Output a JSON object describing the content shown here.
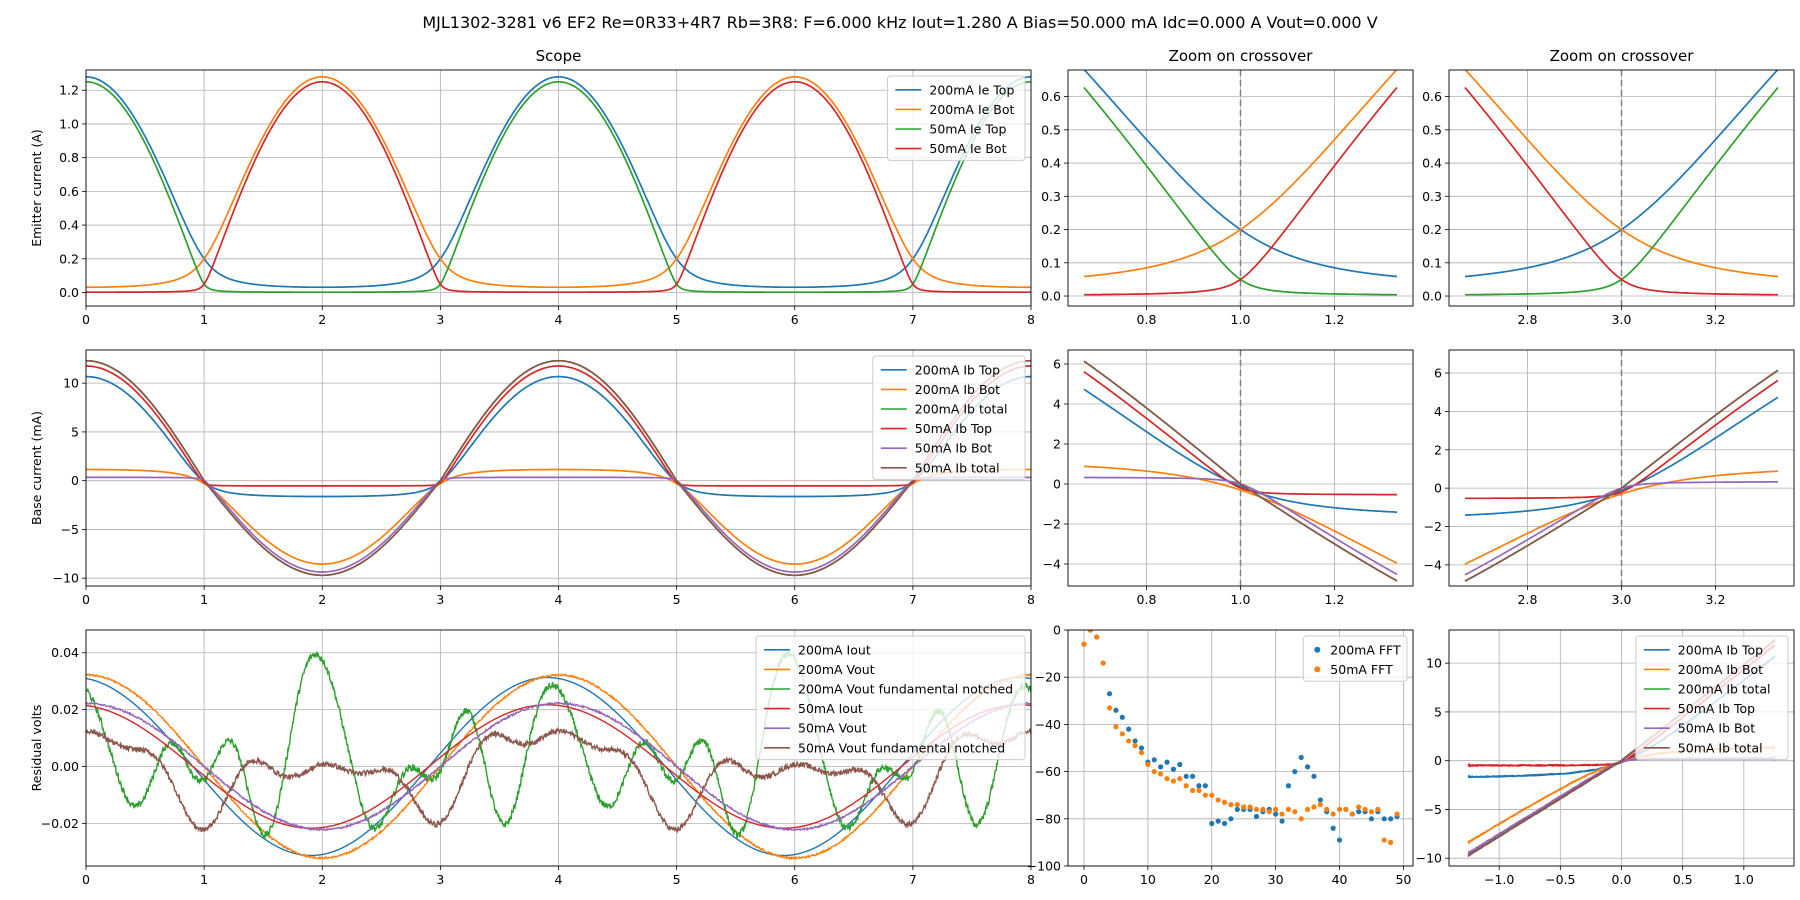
{
  "figure": {
    "suptitle": "MJL1302-3281 v6 EF2 Re=0R33+4R7 Rb=3R8: F=6.000 kHz Iout=1.280 A Bias=50.000 mA Idc=0.000 A Vout=0.000 V"
  },
  "colors": {
    "c0": "#1f77b4",
    "c1": "#ff7f0e",
    "c2": "#2ca02c",
    "c3": "#d62728",
    "c4": "#9467bd",
    "c5": "#8c564b",
    "grid": "#b0b0b0",
    "crossover_line": "#808080"
  },
  "chart_data": [
    {
      "id": "scope_ie",
      "type": "line",
      "title": "Scope",
      "xlabel": "",
      "ylabel": "Emitter current (A)",
      "xlim": [
        0,
        8
      ],
      "ylim": [
        -0.08,
        1.32
      ],
      "xticks": [
        0,
        1,
        2,
        3,
        4,
        5,
        6,
        7,
        8
      ],
      "yticks": [
        0.0,
        0.2,
        0.4,
        0.6,
        0.8,
        1.0,
        1.2
      ],
      "ytick_labels": [
        "0.0",
        "0.2",
        "0.4",
        "0.6",
        "0.8",
        "1.0",
        "1.2"
      ],
      "grid": true,
      "legend": "upper-right",
      "series": [
        {
          "name": "200mA Ie Top",
          "color": "#1f77b4",
          "fn": "ieTop",
          "params": {
            "b": 0.2
          }
        },
        {
          "name": "200mA Ie Bot",
          "color": "#ff7f0e",
          "fn": "ieBot",
          "params": {
            "b": 0.2
          }
        },
        {
          "name": "50mA Ie Top",
          "color": "#2ca02c",
          "fn": "ieTop",
          "params": {
            "b": 0.05
          }
        },
        {
          "name": "50mA Ie Bot",
          "color": "#d62728",
          "fn": "ieBot",
          "params": {
            "b": 0.05
          }
        }
      ]
    },
    {
      "id": "zoom_ie_1",
      "type": "line",
      "title": "Zoom on crossover",
      "xlim": [
        0.633,
        1.367
      ],
      "ylim": [
        -0.03,
        0.68
      ],
      "xticks": [
        0.8,
        1.0,
        1.2
      ],
      "xtick_labels": [
        "0.8",
        "1.0",
        "1.2"
      ],
      "yticks": [
        0.0,
        0.1,
        0.2,
        0.3,
        0.4,
        0.5,
        0.6
      ],
      "ytick_labels": [
        "0.0",
        "0.1",
        "0.2",
        "0.3",
        "0.4",
        "0.5",
        "0.6"
      ],
      "grid": true,
      "vline": 1.0,
      "xrange": [
        0.667,
        1.333
      ],
      "series": [
        {
          "color": "#1f77b4",
          "fn": "ieTop",
          "params": {
            "b": 0.2
          }
        },
        {
          "color": "#ff7f0e",
          "fn": "ieBot",
          "params": {
            "b": 0.2
          }
        },
        {
          "color": "#2ca02c",
          "fn": "ieTop",
          "params": {
            "b": 0.05
          }
        },
        {
          "color": "#d62728",
          "fn": "ieBot",
          "params": {
            "b": 0.05
          }
        }
      ]
    },
    {
      "id": "zoom_ie_3",
      "type": "line",
      "title": "Zoom on crossover",
      "xlim": [
        2.633,
        3.367
      ],
      "ylim": [
        -0.03,
        0.68
      ],
      "xticks": [
        2.8,
        3.0,
        3.2
      ],
      "xtick_labels": [
        "2.8",
        "3.0",
        "3.2"
      ],
      "yticks": [
        0.0,
        0.1,
        0.2,
        0.3,
        0.4,
        0.5,
        0.6
      ],
      "ytick_labels": [
        "0.0",
        "0.1",
        "0.2",
        "0.3",
        "0.4",
        "0.5",
        "0.6"
      ],
      "grid": true,
      "vline": 3.0,
      "xrange": [
        2.667,
        3.333
      ],
      "series": [
        {
          "color": "#1f77b4",
          "fn": "ieTop",
          "params": {
            "b": 0.2
          }
        },
        {
          "color": "#ff7f0e",
          "fn": "ieBot",
          "params": {
            "b": 0.2
          }
        },
        {
          "color": "#2ca02c",
          "fn": "ieTop",
          "params": {
            "b": 0.05
          }
        },
        {
          "color": "#d62728",
          "fn": "ieBot",
          "params": {
            "b": 0.05
          }
        }
      ]
    },
    {
      "id": "scope_ib",
      "type": "line",
      "title": "",
      "ylabel": "Base current (mA)",
      "xlim": [
        0,
        8
      ],
      "ylim": [
        -10.8,
        13.4
      ],
      "xticks": [
        0,
        1,
        2,
        3,
        4,
        5,
        6,
        7,
        8
      ],
      "yticks": [
        -10,
        -5,
        0,
        5,
        10
      ],
      "ytick_labels": [
        "−10",
        "−5",
        "0",
        "5",
        "10"
      ],
      "grid": true,
      "legend": "upper-right",
      "series": [
        {
          "name": "200mA Ib Top",
          "color": "#1f77b4",
          "fn": "ibTop",
          "params": {
            "b": 0.2
          }
        },
        {
          "name": "200mA Ib Bot",
          "color": "#ff7f0e",
          "fn": "ibBot",
          "params": {
            "b": 0.2
          }
        },
        {
          "name": "200mA Ib total",
          "color": "#2ca02c",
          "fn": "ibTot",
          "params": {
            "b": 0.2
          }
        },
        {
          "name": "50mA Ib Top",
          "color": "#d62728",
          "fn": "ibTop",
          "params": {
            "b": 0.05
          }
        },
        {
          "name": "50mA Ib Bot",
          "color": "#9467bd",
          "fn": "ibBot",
          "params": {
            "b": 0.05
          }
        },
        {
          "name": "50mA Ib total",
          "color": "#8c564b",
          "fn": "ibTot",
          "params": {
            "b": 0.05
          }
        }
      ]
    },
    {
      "id": "zoom_ib_1",
      "type": "line",
      "title": "",
      "xlim": [
        0.633,
        1.367
      ],
      "ylim": [
        -5.1,
        6.7
      ],
      "xticks": [
        0.8,
        1.0,
        1.2
      ],
      "xtick_labels": [
        "0.8",
        "1.0",
        "1.2"
      ],
      "yticks": [
        -4,
        -2,
        0,
        2,
        4,
        6
      ],
      "ytick_labels": [
        "−4",
        "−2",
        "0",
        "2",
        "4",
        "6"
      ],
      "grid": true,
      "vline": 1.0,
      "xrange": [
        0.667,
        1.333
      ],
      "series": [
        {
          "color": "#1f77b4",
          "fn": "ibTop",
          "params": {
            "b": 0.2
          }
        },
        {
          "color": "#ff7f0e",
          "fn": "ibBot",
          "params": {
            "b": 0.2
          }
        },
        {
          "color": "#2ca02c",
          "fn": "ibTot",
          "params": {
            "b": 0.2
          }
        },
        {
          "color": "#d62728",
          "fn": "ibTop",
          "params": {
            "b": 0.05
          }
        },
        {
          "color": "#9467bd",
          "fn": "ibBot",
          "params": {
            "b": 0.05
          }
        },
        {
          "color": "#8c564b",
          "fn": "ibTot",
          "params": {
            "b": 0.05
          }
        }
      ]
    },
    {
      "id": "zoom_ib_3",
      "type": "line",
      "title": "",
      "xlim": [
        2.633,
        3.367
      ],
      "ylim": [
        -5.1,
        7.2
      ],
      "xticks": [
        2.8,
        3.0,
        3.2
      ],
      "xtick_labels": [
        "2.8",
        "3.0",
        "3.2"
      ],
      "yticks": [
        -4,
        -2,
        0,
        2,
        4,
        6
      ],
      "ytick_labels": [
        "−4",
        "−2",
        "0",
        "2",
        "4",
        "6"
      ],
      "grid": true,
      "vline": 3.0,
      "xrange": [
        2.667,
        3.333
      ],
      "series": [
        {
          "color": "#1f77b4",
          "fn": "ibTop",
          "params": {
            "b": 0.2
          }
        },
        {
          "color": "#ff7f0e",
          "fn": "ibBot",
          "params": {
            "b": 0.2
          }
        },
        {
          "color": "#2ca02c",
          "fn": "ibTot",
          "params": {
            "b": 0.2
          }
        },
        {
          "color": "#d62728",
          "fn": "ibTop",
          "params": {
            "b": 0.05
          }
        },
        {
          "color": "#9467bd",
          "fn": "ibBot",
          "params": {
            "b": 0.05
          }
        },
        {
          "color": "#8c564b",
          "fn": "ibTot",
          "params": {
            "b": 0.05
          }
        }
      ]
    },
    {
      "id": "scope_resid",
      "type": "line",
      "title": "",
      "ylabel": "Residual volts",
      "xlim": [
        0,
        8
      ],
      "ylim": [
        -0.035,
        0.048
      ],
      "xticks": [
        0,
        1,
        2,
        3,
        4,
        5,
        6,
        7,
        8
      ],
      "yticks": [
        -0.02,
        0.0,
        0.02,
        0.04
      ],
      "ytick_labels": [
        "−0.02",
        "0.00",
        "0.02",
        "0.04"
      ],
      "grid": true,
      "legend": "upper-right",
      "series": [
        {
          "name": "200mA Iout",
          "color": "#1f77b4",
          "fn": "cosA",
          "params": {
            "a": 0.0313,
            "ph": 0.15,
            "noise": 0
          }
        },
        {
          "name": "200mA Vout",
          "color": "#ff7f0e",
          "fn": "cosA",
          "params": {
            "a": 0.0322,
            "ph": 0,
            "noise": 0.0003
          }
        },
        {
          "name": "200mA Vout fundamental notched",
          "color": "#2ca02c",
          "fn": "notch200",
          "params": {
            "noise": 0.0012
          }
        },
        {
          "name": "50mA Iout",
          "color": "#d62728",
          "fn": "cosA",
          "params": {
            "a": 0.0217,
            "ph": 0.15,
            "noise": 0
          }
        },
        {
          "name": "50mA Vout",
          "color": "#9467bd",
          "fn": "cosA",
          "params": {
            "a": 0.0222,
            "ph": 0,
            "noise": 0.0003
          }
        },
        {
          "name": "50mA Vout fundamental notched",
          "color": "#8c564b",
          "fn": "notch50",
          "params": {
            "noise": 0.0009
          }
        }
      ]
    },
    {
      "id": "fft",
      "type": "scatter",
      "title": "",
      "xlim": [
        -2.5,
        51.5
      ],
      "ylim": [
        -100,
        0
      ],
      "xticks": [
        0,
        10,
        20,
        30,
        40,
        50
      ],
      "xtick_labels": [
        "0",
        "10",
        "20",
        "30",
        "40",
        "50"
      ],
      "yticks": [
        -100,
        -80,
        -60,
        -40,
        -20,
        0
      ],
      "ytick_labels": [
        "−100",
        "−80",
        "−60",
        "−40",
        "−20",
        "0"
      ],
      "grid": true,
      "legend": "upper-right",
      "series": [
        {
          "name": "200mA FFT",
          "color": "#1f77b4",
          "x": [
            0,
            1,
            2,
            3,
            4,
            5,
            6,
            7,
            8,
            9,
            10,
            11,
            12,
            13,
            14,
            15,
            16,
            17,
            18,
            19,
            20,
            21,
            22,
            23,
            24,
            25,
            26,
            27,
            28,
            29,
            30,
            31,
            32,
            33,
            34,
            35,
            36,
            37,
            38,
            39,
            40,
            41,
            42,
            43,
            44,
            45,
            46,
            47,
            48,
            49
          ],
          "y": [
            -6,
            0,
            -3,
            -14,
            -27,
            -34,
            -37,
            -42,
            -47,
            -50,
            -56,
            -55,
            -58,
            -56,
            -59,
            -57,
            -62,
            -62,
            -66,
            -66,
            -82,
            -81,
            -82,
            -80,
            -76,
            -76,
            -76,
            -79,
            -77,
            -76,
            -78,
            -81,
            -66,
            -60,
            -54,
            -58,
            -62,
            -72,
            -77,
            -84,
            -89,
            -76,
            -78,
            -77,
            -77,
            -80,
            -77,
            -80,
            -80,
            -79
          ]
        },
        {
          "name": "50mA FFT",
          "color": "#ff7f0e",
          "x": [
            0,
            1,
            2,
            3,
            4,
            5,
            6,
            7,
            8,
            9,
            10,
            11,
            12,
            13,
            14,
            15,
            16,
            17,
            18,
            19,
            20,
            21,
            22,
            23,
            24,
            25,
            26,
            27,
            28,
            29,
            30,
            31,
            32,
            33,
            34,
            35,
            36,
            37,
            38,
            39,
            40,
            41,
            42,
            43,
            44,
            45,
            46,
            47,
            48,
            49
          ],
          "y": [
            -6,
            0,
            -3,
            -14,
            -33,
            -41,
            -44,
            -47,
            -49,
            -52,
            -57,
            -60,
            -61,
            -63,
            -64,
            -63,
            -66,
            -68,
            -68,
            -70,
            -70,
            -72,
            -73,
            -74,
            -74,
            -75,
            -75,
            -76,
            -76,
            -77,
            -76,
            -78,
            -76,
            -77,
            -80,
            -76,
            -75,
            -74,
            -76,
            -78,
            -76,
            -76,
            -78,
            -75,
            -76,
            -77,
            -76,
            -89,
            -90,
            -78
          ]
        }
      ]
    },
    {
      "id": "xy_ib",
      "type": "line",
      "title": "",
      "xlim": [
        -1.41,
        1.41
      ],
      "ylim": [
        -10.8,
        13.4
      ],
      "xticks": [
        -1.0,
        -0.5,
        0.0,
        0.5,
        1.0
      ],
      "xtick_labels": [
        "−1.0",
        "−0.5",
        "0.0",
        "0.5",
        "1.0"
      ],
      "yticks": [
        -10,
        -5,
        0,
        5,
        10
      ],
      "ytick_labels": [
        "−10",
        "−5",
        "0",
        "5",
        "10"
      ],
      "grid": true,
      "legend": "upper-right",
      "series": [
        {
          "name": "200mA Ib Top",
          "color": "#1f77b4",
          "fn": "xyTop",
          "params": {
            "b": 0.2
          }
        },
        {
          "name": "200mA Ib Bot",
          "color": "#ff7f0e",
          "fn": "xyBot",
          "params": {
            "b": 0.2
          }
        },
        {
          "name": "200mA Ib total",
          "color": "#2ca02c",
          "fn": "xyTot",
          "params": {
            "b": 0.2
          }
        },
        {
          "name": "50mA Ib Top",
          "color": "#d62728",
          "fn": "xyTop",
          "params": {
            "b": 0.05
          }
        },
        {
          "name": "50mA Ib Bot",
          "color": "#9467bd",
          "fn": "xyBot",
          "params": {
            "b": 0.05
          }
        },
        {
          "name": "50mA Ib total",
          "color": "#8c564b",
          "fn": "xyTot",
          "params": {
            "b": 0.05
          }
        }
      ]
    }
  ]
}
